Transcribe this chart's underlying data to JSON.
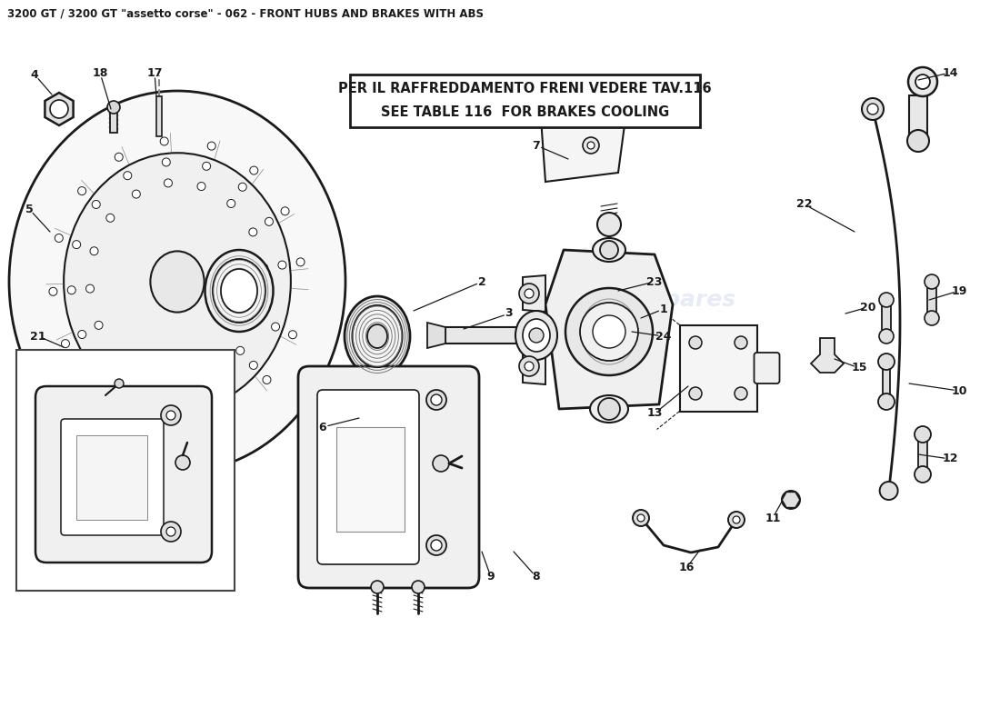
{
  "title": "3200 GT / 3200 GT \"assetto corse\" - 062 - FRONT HUBS AND BRAKES WITH ABS",
  "notice_line1": "PER IL RAFFREDDAMENTO FRENI VEDERE TAV.116",
  "notice_line2": "SEE TABLE 116  FOR BRAKES COOLING",
  "bg_color": "#ffffff",
  "watermark_color": "#c8d4e8",
  "line_color": "#1a1a1a",
  "title_fontsize": 8.5,
  "notice_fontsize": 10.5,
  "label_fontsize": 9
}
